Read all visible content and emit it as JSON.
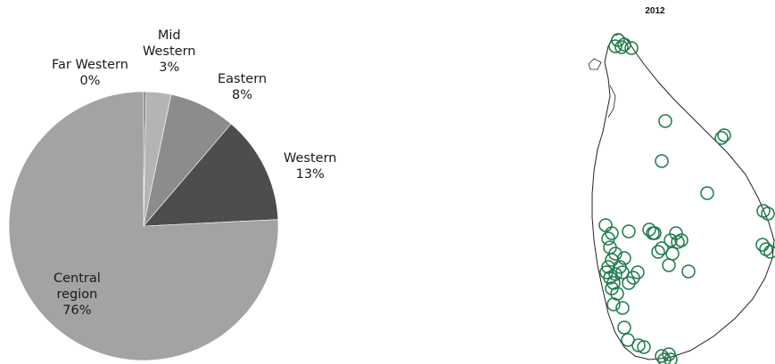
{
  "chart_data": [
    {
      "type": "pie",
      "slices": [
        {
          "label": "Far Western",
          "pct_label": "0%",
          "value": 0.3,
          "color": "#7a7a7a"
        },
        {
          "label": "Mid Western",
          "pct_label": "3%",
          "value": 3,
          "color": "#b4b4b4"
        },
        {
          "label": "Eastern",
          "pct_label": "8%",
          "value": 8,
          "color": "#8c8c8c"
        },
        {
          "label": "Western",
          "pct_label": "13%",
          "value": 13,
          "color": "#4d4d4d"
        },
        {
          "label": "Central region",
          "pct_label": "76%",
          "value": 76,
          "color": "#a3a3a3"
        }
      ],
      "labels": [
        {
          "lines": [
            "Far Western",
            "0%"
          ]
        },
        {
          "lines": [
            "Mid",
            "Western",
            "3%"
          ]
        },
        {
          "lines": [
            "Eastern",
            "8%"
          ]
        },
        {
          "lines": [
            "Western",
            "13%"
          ]
        },
        {
          "lines": [
            "Central",
            "region",
            "76%"
          ]
        }
      ]
    },
    {
      "type": "scatter",
      "title": "2012",
      "marker_color": "#1e7a4a"
    }
  ]
}
